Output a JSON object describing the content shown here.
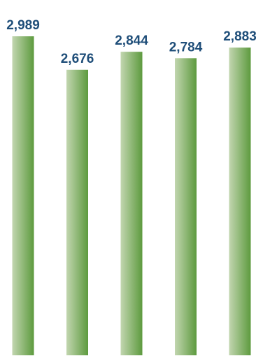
{
  "chart_data": {
    "type": "bar",
    "categories": [
      "",
      "",
      "",
      "",
      ""
    ],
    "values": [
      2989,
      2676,
      2844,
      2784,
      2883
    ],
    "value_labels": [
      "2,989",
      "2,676",
      "2,844",
      "2,784",
      "2,883"
    ],
    "title": "",
    "xlabel": "",
    "ylabel": "",
    "ylim": [
      0,
      3000
    ],
    "grid": false,
    "legend": "none",
    "axes_visible": false,
    "data_labels": "above-bars"
  },
  "colors": {
    "bar_light": "#c2d6b0",
    "bar_dark": "#5d9a3e",
    "label_text": "#1f4e79",
    "background": "#ffffff"
  }
}
